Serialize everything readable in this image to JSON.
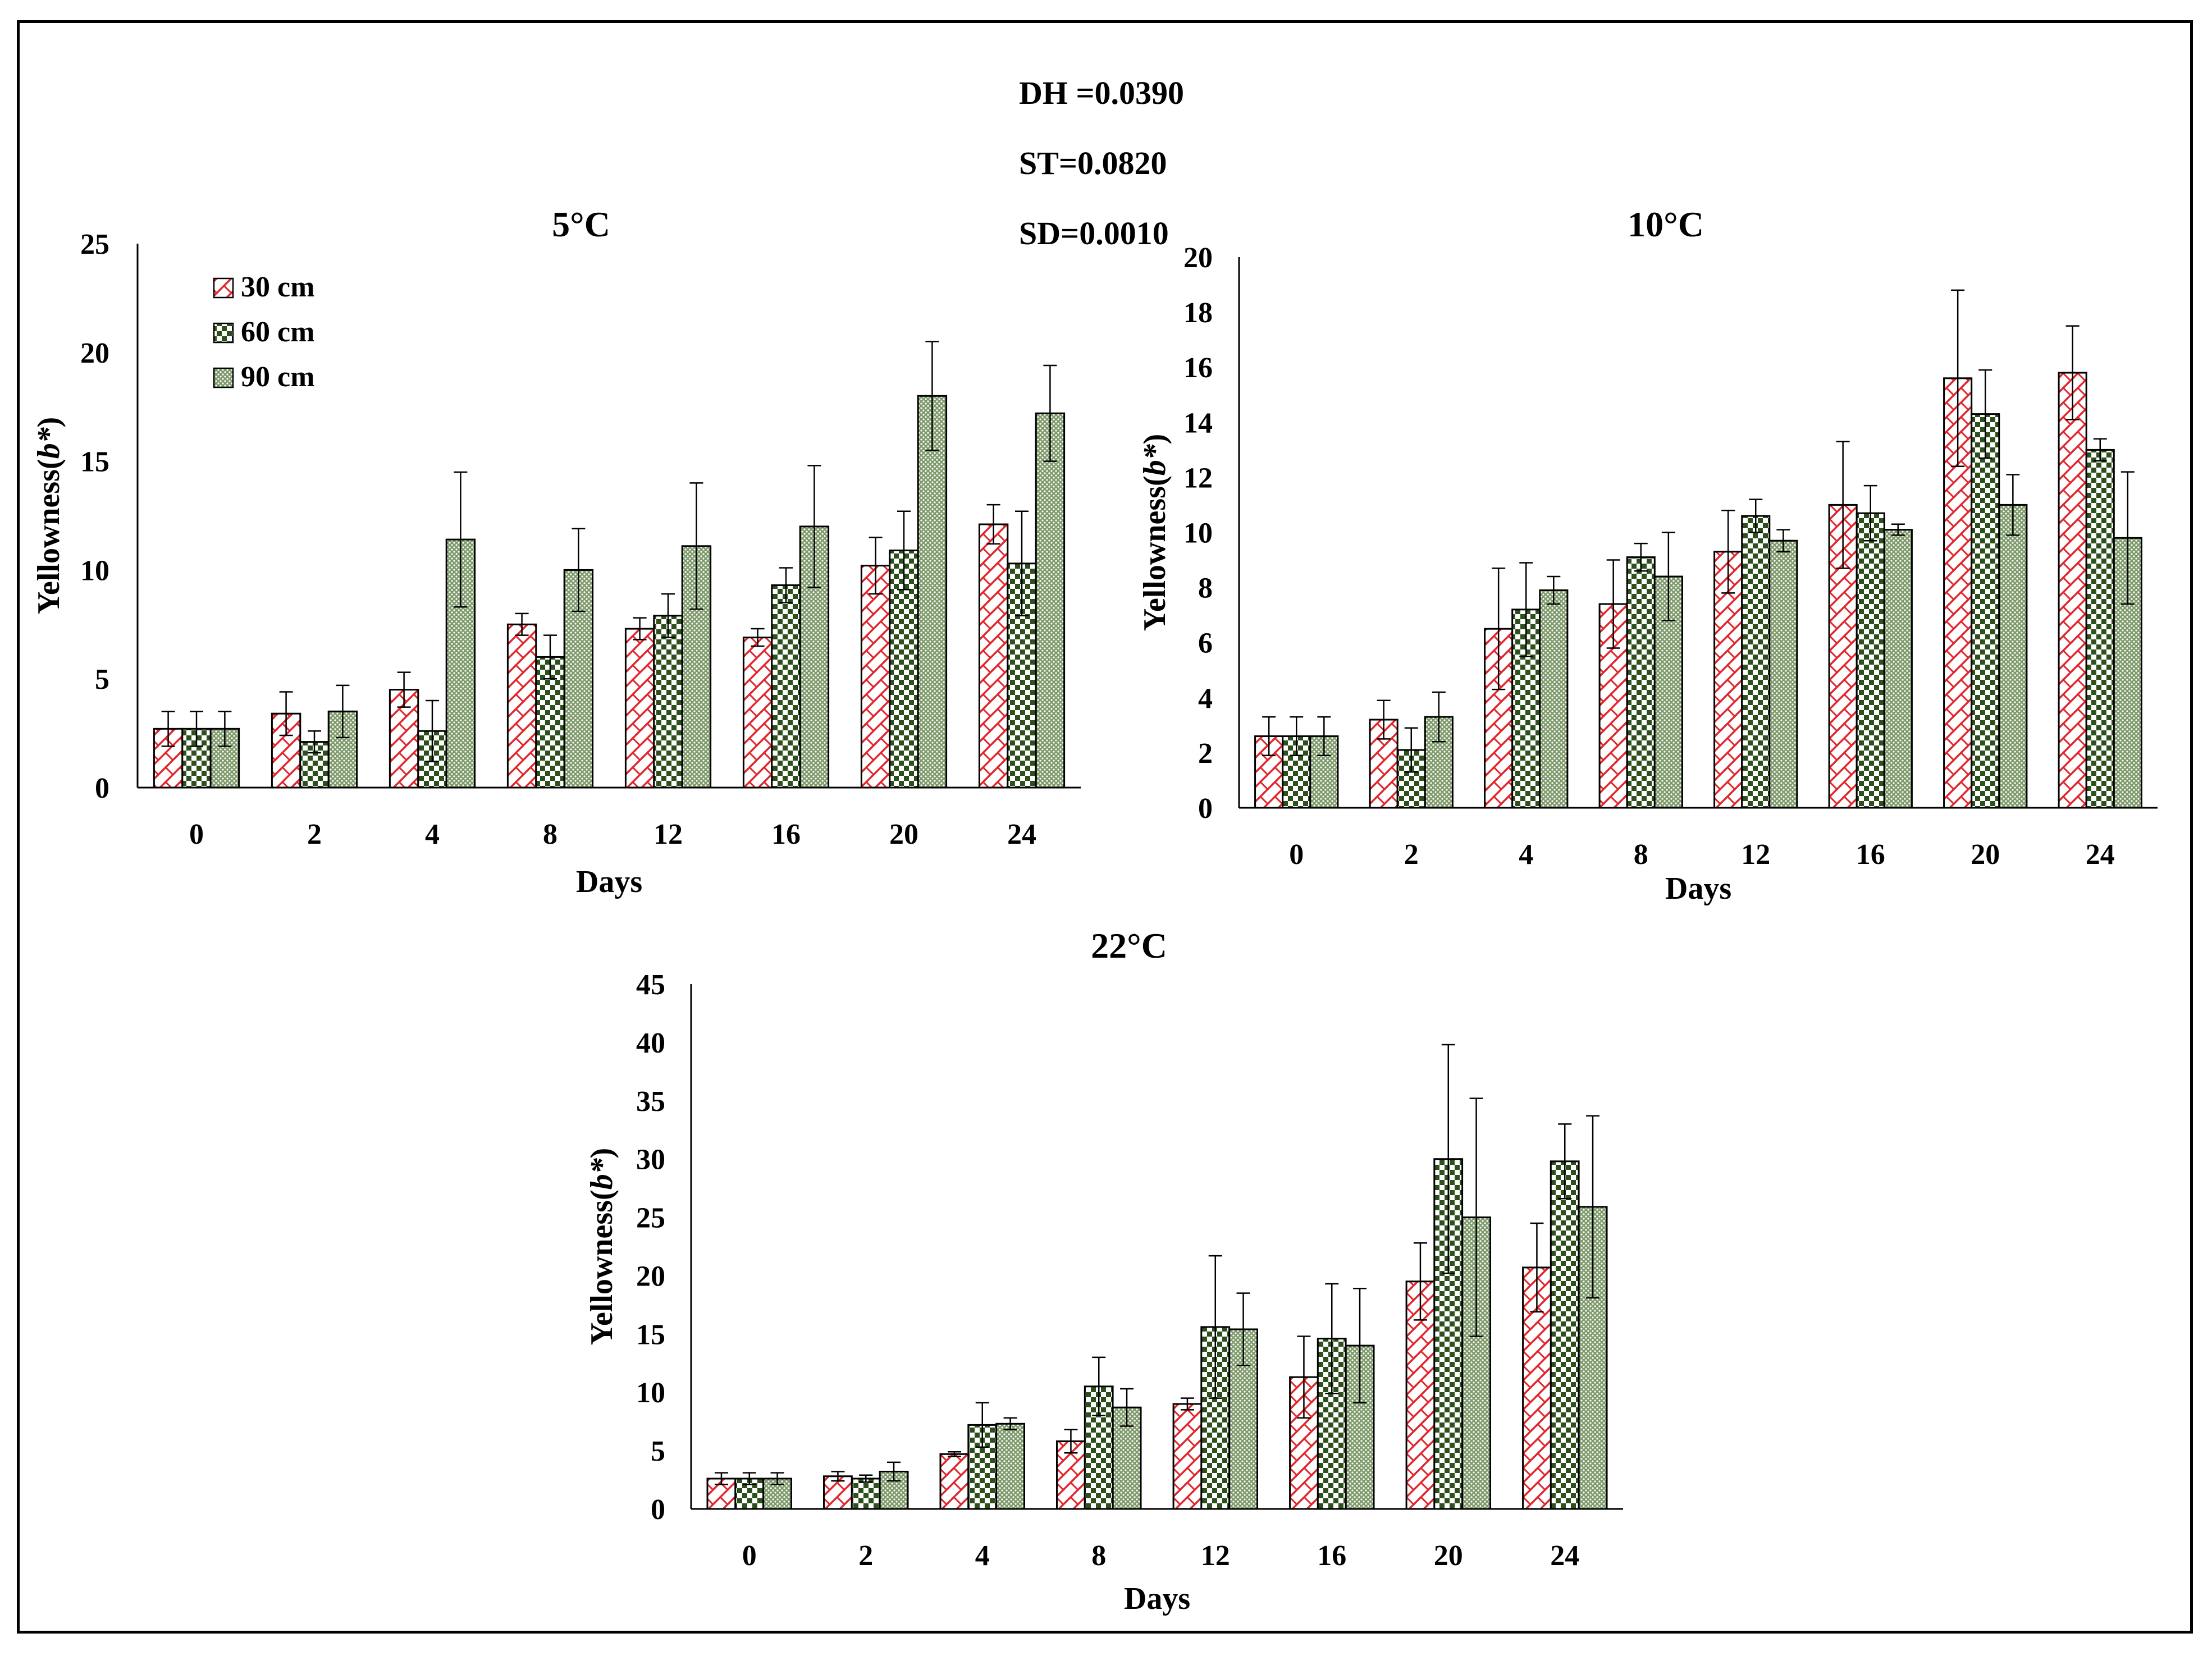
{
  "stats": [
    "DH =0.0390",
    "ST=0.0820",
    "SD=0.0010"
  ],
  "colors": {
    "series_30": "#e0262c",
    "series_60": "#2c4f1c",
    "series_90": "#6f8a5d",
    "axis": "#000000"
  },
  "chart_data": [
    {
      "type": "bar",
      "title": "5°C",
      "xlabel": "Days",
      "ylabel": "Yellowness(b*)",
      "ylim": [
        0,
        25
      ],
      "yticks": [
        0,
        5,
        10,
        15,
        20,
        25
      ],
      "categories": [
        "0",
        "2",
        "4",
        "8",
        "12",
        "16",
        "20",
        "24"
      ],
      "legend": [
        "30 cm",
        "60 cm",
        "90 cm"
      ],
      "series": [
        {
          "name": "30 cm",
          "values": [
            2.7,
            3.4,
            4.5,
            7.5,
            7.3,
            6.9,
            10.2,
            12.1
          ],
          "errors": [
            0.8,
            1.0,
            0.8,
            0.5,
            0.5,
            0.4,
            1.3,
            0.9
          ]
        },
        {
          "name": "60 cm",
          "values": [
            2.7,
            2.1,
            2.6,
            6.0,
            7.9,
            9.3,
            10.9,
            10.3
          ],
          "errors": [
            0.8,
            0.5,
            1.4,
            1.0,
            1.0,
            0.8,
            1.8,
            2.4
          ]
        },
        {
          "name": "90 cm",
          "values": [
            2.7,
            3.5,
            11.4,
            10.0,
            11.1,
            12.0,
            18.0,
            17.2
          ],
          "errors": [
            0.8,
            1.2,
            3.1,
            1.9,
            2.9,
            2.8,
            2.5,
            2.2
          ]
        }
      ]
    },
    {
      "type": "bar",
      "title": "10°C",
      "xlabel": "Days",
      "ylabel": "Yellowness(b*)",
      "ylim": [
        0,
        20
      ],
      "yticks": [
        0,
        2,
        4,
        6,
        8,
        10,
        12,
        14,
        16,
        18,
        20
      ],
      "categories": [
        "0",
        "2",
        "4",
        "8",
        "12",
        "16",
        "20",
        "24"
      ],
      "series": [
        {
          "name": "30 cm",
          "values": [
            2.6,
            3.2,
            6.5,
            7.4,
            9.3,
            11.0,
            15.6,
            15.8
          ],
          "errors": [
            0.7,
            0.7,
            2.2,
            1.6,
            1.5,
            2.3,
            3.2,
            1.7
          ]
        },
        {
          "name": "60 cm",
          "values": [
            2.6,
            2.1,
            7.2,
            9.1,
            10.6,
            10.7,
            14.3,
            13.0
          ],
          "errors": [
            0.7,
            0.8,
            1.7,
            0.5,
            0.6,
            1.0,
            1.6,
            0.4
          ]
        },
        {
          "name": "90 cm",
          "values": [
            2.6,
            3.3,
            7.9,
            8.4,
            9.7,
            10.1,
            11.0,
            9.8
          ],
          "errors": [
            0.7,
            0.9,
            0.5,
            1.6,
            0.4,
            0.2,
            1.1,
            2.4
          ]
        }
      ]
    },
    {
      "type": "bar",
      "title": "22°C",
      "xlabel": "Days",
      "ylabel": "Yellowness(b*)",
      "ylim": [
        0,
        45
      ],
      "yticks": [
        0,
        5,
        10,
        15,
        20,
        25,
        30,
        35,
        40,
        45
      ],
      "categories": [
        "0",
        "2",
        "4",
        "8",
        "12",
        "16",
        "20",
        "24"
      ],
      "series": [
        {
          "name": "30 cm",
          "values": [
            2.6,
            2.8,
            4.7,
            5.8,
            9.0,
            11.3,
            19.5,
            20.7
          ],
          "errors": [
            0.5,
            0.4,
            0.2,
            1.0,
            0.5,
            3.5,
            3.3,
            3.8
          ]
        },
        {
          "name": "60 cm",
          "values": [
            2.6,
            2.6,
            7.2,
            10.5,
            15.6,
            14.6,
            30.0,
            29.8
          ],
          "errors": [
            0.5,
            0.3,
            1.9,
            2.5,
            6.1,
            4.7,
            9.8,
            3.2
          ]
        },
        {
          "name": "90 cm",
          "values": [
            2.6,
            3.2,
            7.3,
            8.7,
            15.4,
            14.0,
            25.0,
            25.9
          ],
          "errors": [
            0.5,
            0.8,
            0.5,
            1.6,
            3.1,
            4.9,
            10.2,
            7.8
          ]
        }
      ]
    }
  ]
}
